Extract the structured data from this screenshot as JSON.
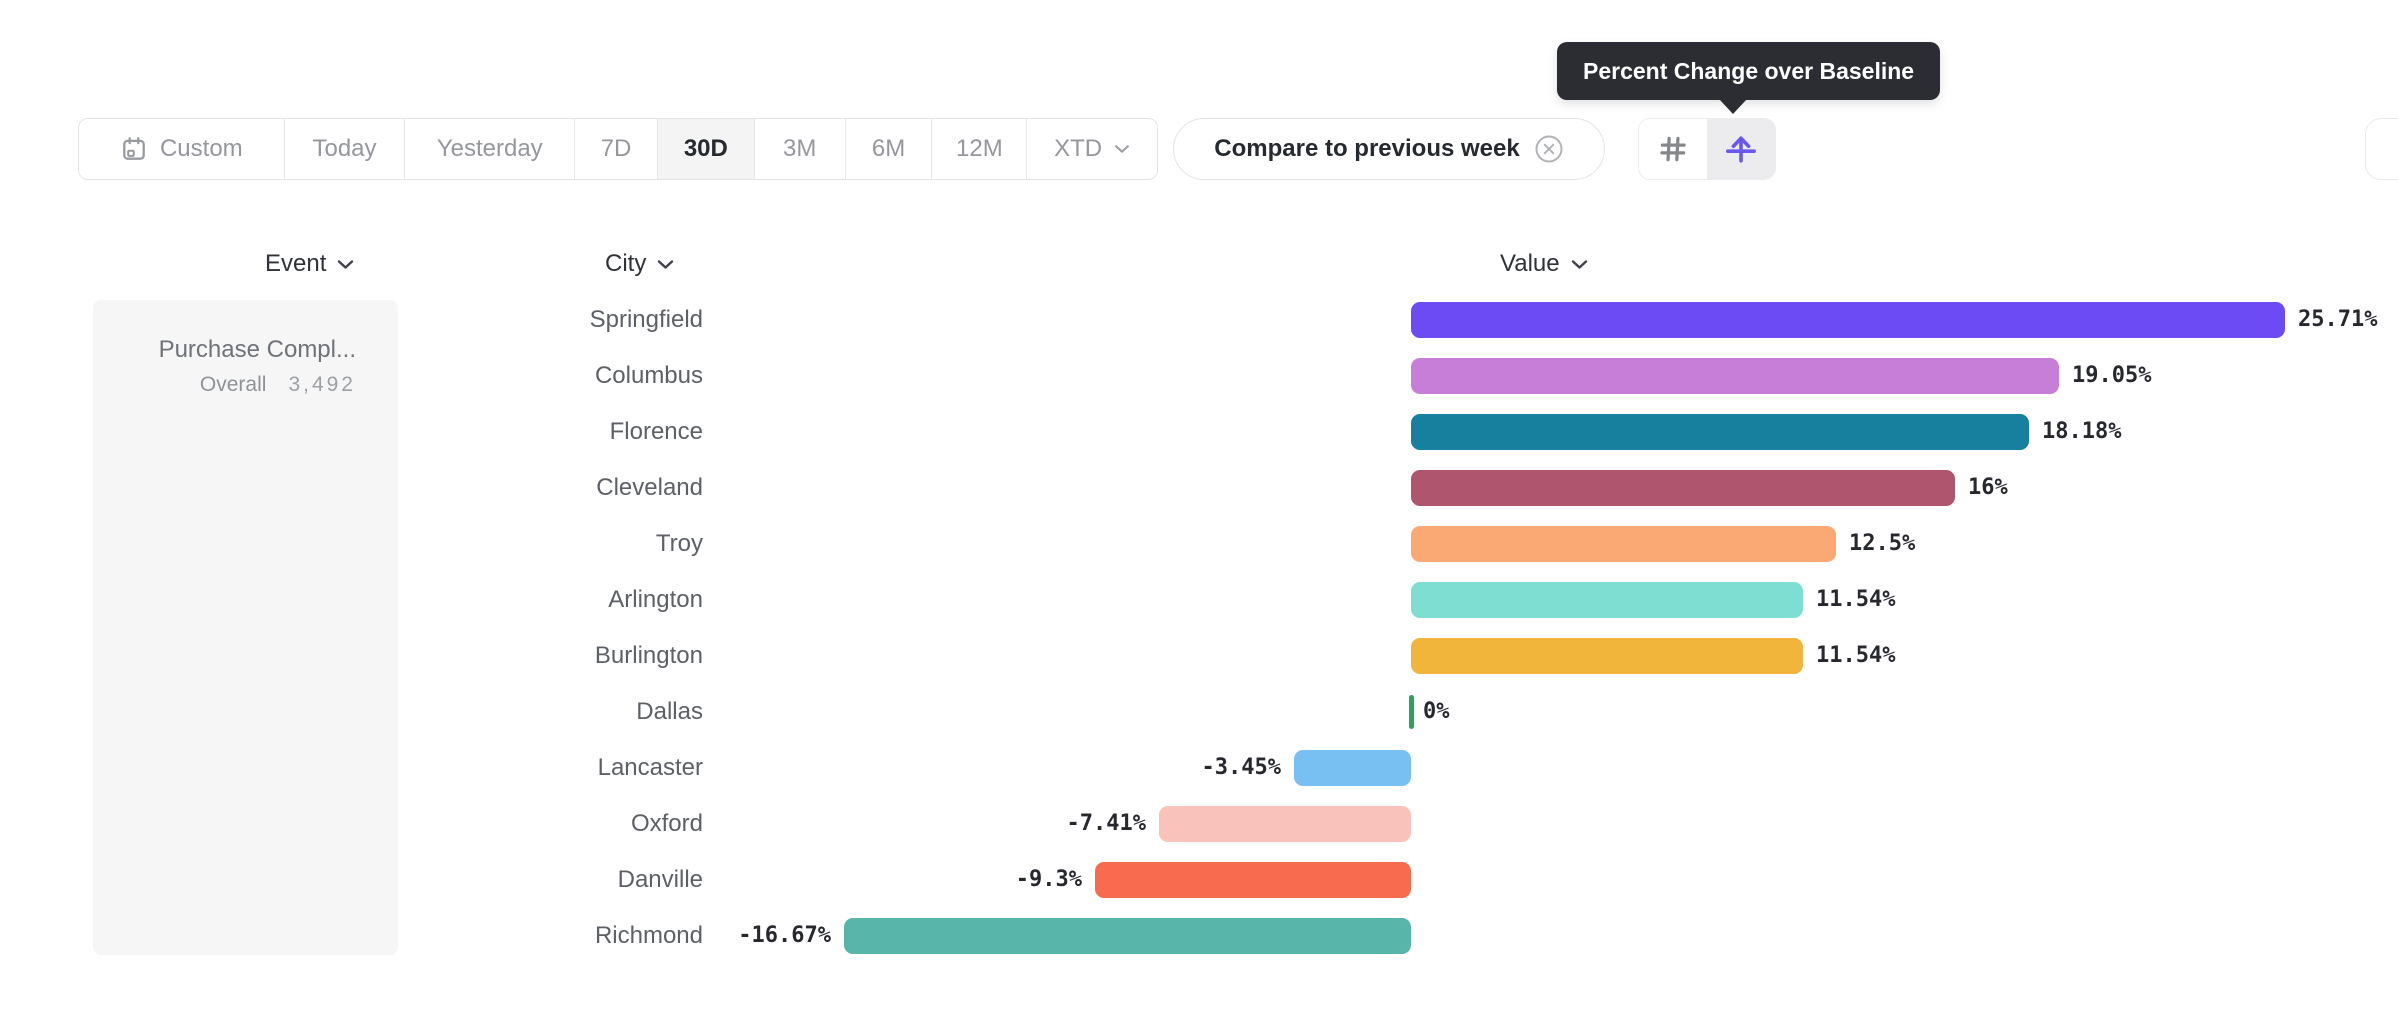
{
  "tooltip": {
    "text": "Percent Change over Baseline"
  },
  "toolbar": {
    "date_ranges": [
      {
        "label": "Custom",
        "icon": "calendar-icon",
        "selected": false
      },
      {
        "label": "Today",
        "selected": false
      },
      {
        "label": "Yesterday",
        "selected": false
      },
      {
        "label": "7D",
        "selected": false
      },
      {
        "label": "30D",
        "selected": true
      },
      {
        "label": "3M",
        "selected": false
      },
      {
        "label": "6M",
        "selected": false
      },
      {
        "label": "12M",
        "selected": false
      },
      {
        "label": "XTD",
        "selected": false,
        "chevron": true
      }
    ],
    "comparison": {
      "label": "Compare to previous week",
      "remove_icon": "circle-x-icon"
    },
    "view_toggles": [
      {
        "name": "grid-view",
        "icon": "hash-icon",
        "selected": false
      },
      {
        "name": "percent-change-over-baseline",
        "icon": "baseline-arrow-icon",
        "selected": true
      }
    ]
  },
  "columns": {
    "event": "Event",
    "city": "City",
    "value": "Value"
  },
  "event_panel": {
    "title": "Purchase Compl...",
    "overall_label": "Overall",
    "overall_value": "3,492"
  },
  "chart_data": {
    "type": "bar",
    "orientation": "horizontal",
    "unit": "percent",
    "baseline": 0,
    "categories": [
      "Springfield",
      "Columbus",
      "Florence",
      "Cleveland",
      "Troy",
      "Arlington",
      "Burlington",
      "Dallas",
      "Lancaster",
      "Oxford",
      "Danville",
      "Richmond"
    ],
    "values": [
      25.71,
      19.05,
      18.18,
      16,
      12.5,
      11.54,
      11.54,
      0,
      -3.45,
      -7.41,
      -9.3,
      -16.67
    ],
    "labels": [
      "25.71%",
      "19.05%",
      "18.18%",
      "16%",
      "12.5%",
      "11.54%",
      "11.54%",
      "0%",
      "-3.45%",
      "-7.41%",
      "-9.3%",
      "-16.67%"
    ],
    "colors": [
      "#6C4BF4",
      "#C77ED8",
      "#16809E",
      "#B0556E",
      "#FAA975",
      "#7EDED2",
      "#F1B53C",
      "#2E9E62",
      "#78BFF2",
      "#F9C3BB",
      "#F96B4E",
      "#58B5A9"
    ]
  },
  "theme": {
    "tooltip_bg": "#2b2d33",
    "accent_purple": "#6a57f0",
    "panel_bg": "#f6f6f7",
    "border": "#e2e3e5",
    "muted_text": "#95979c",
    "dark_text": "#26292e",
    "zero_tick_green": "#2E9E62"
  }
}
